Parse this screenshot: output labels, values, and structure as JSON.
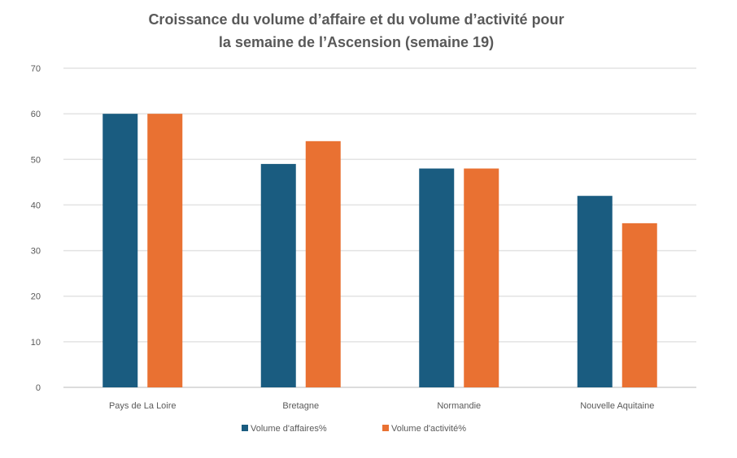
{
  "chart_data": {
    "type": "bar",
    "title_lines": [
      "Croissance du volume d’affaire et du volume d’activité pour",
      "la semaine de l’Ascension (semaine 19)"
    ],
    "categories": [
      "Pays de La Loire",
      "Bretagne",
      "Normandie",
      "Nouvelle Aquitaine"
    ],
    "series": [
      {
        "name": "Volume d'affaires%",
        "color": "#1a5c80",
        "values": [
          60,
          49,
          48,
          42
        ]
      },
      {
        "name": "Volume d'activité%",
        "color": "#e97132",
        "values": [
          60,
          54,
          48,
          36
        ]
      }
    ],
    "ylim": [
      0,
      70
    ],
    "yticks": [
      0,
      10,
      20,
      30,
      40,
      50,
      60,
      70
    ],
    "grid": true,
    "legend": "bottom",
    "xlabel": "",
    "ylabel": ""
  }
}
